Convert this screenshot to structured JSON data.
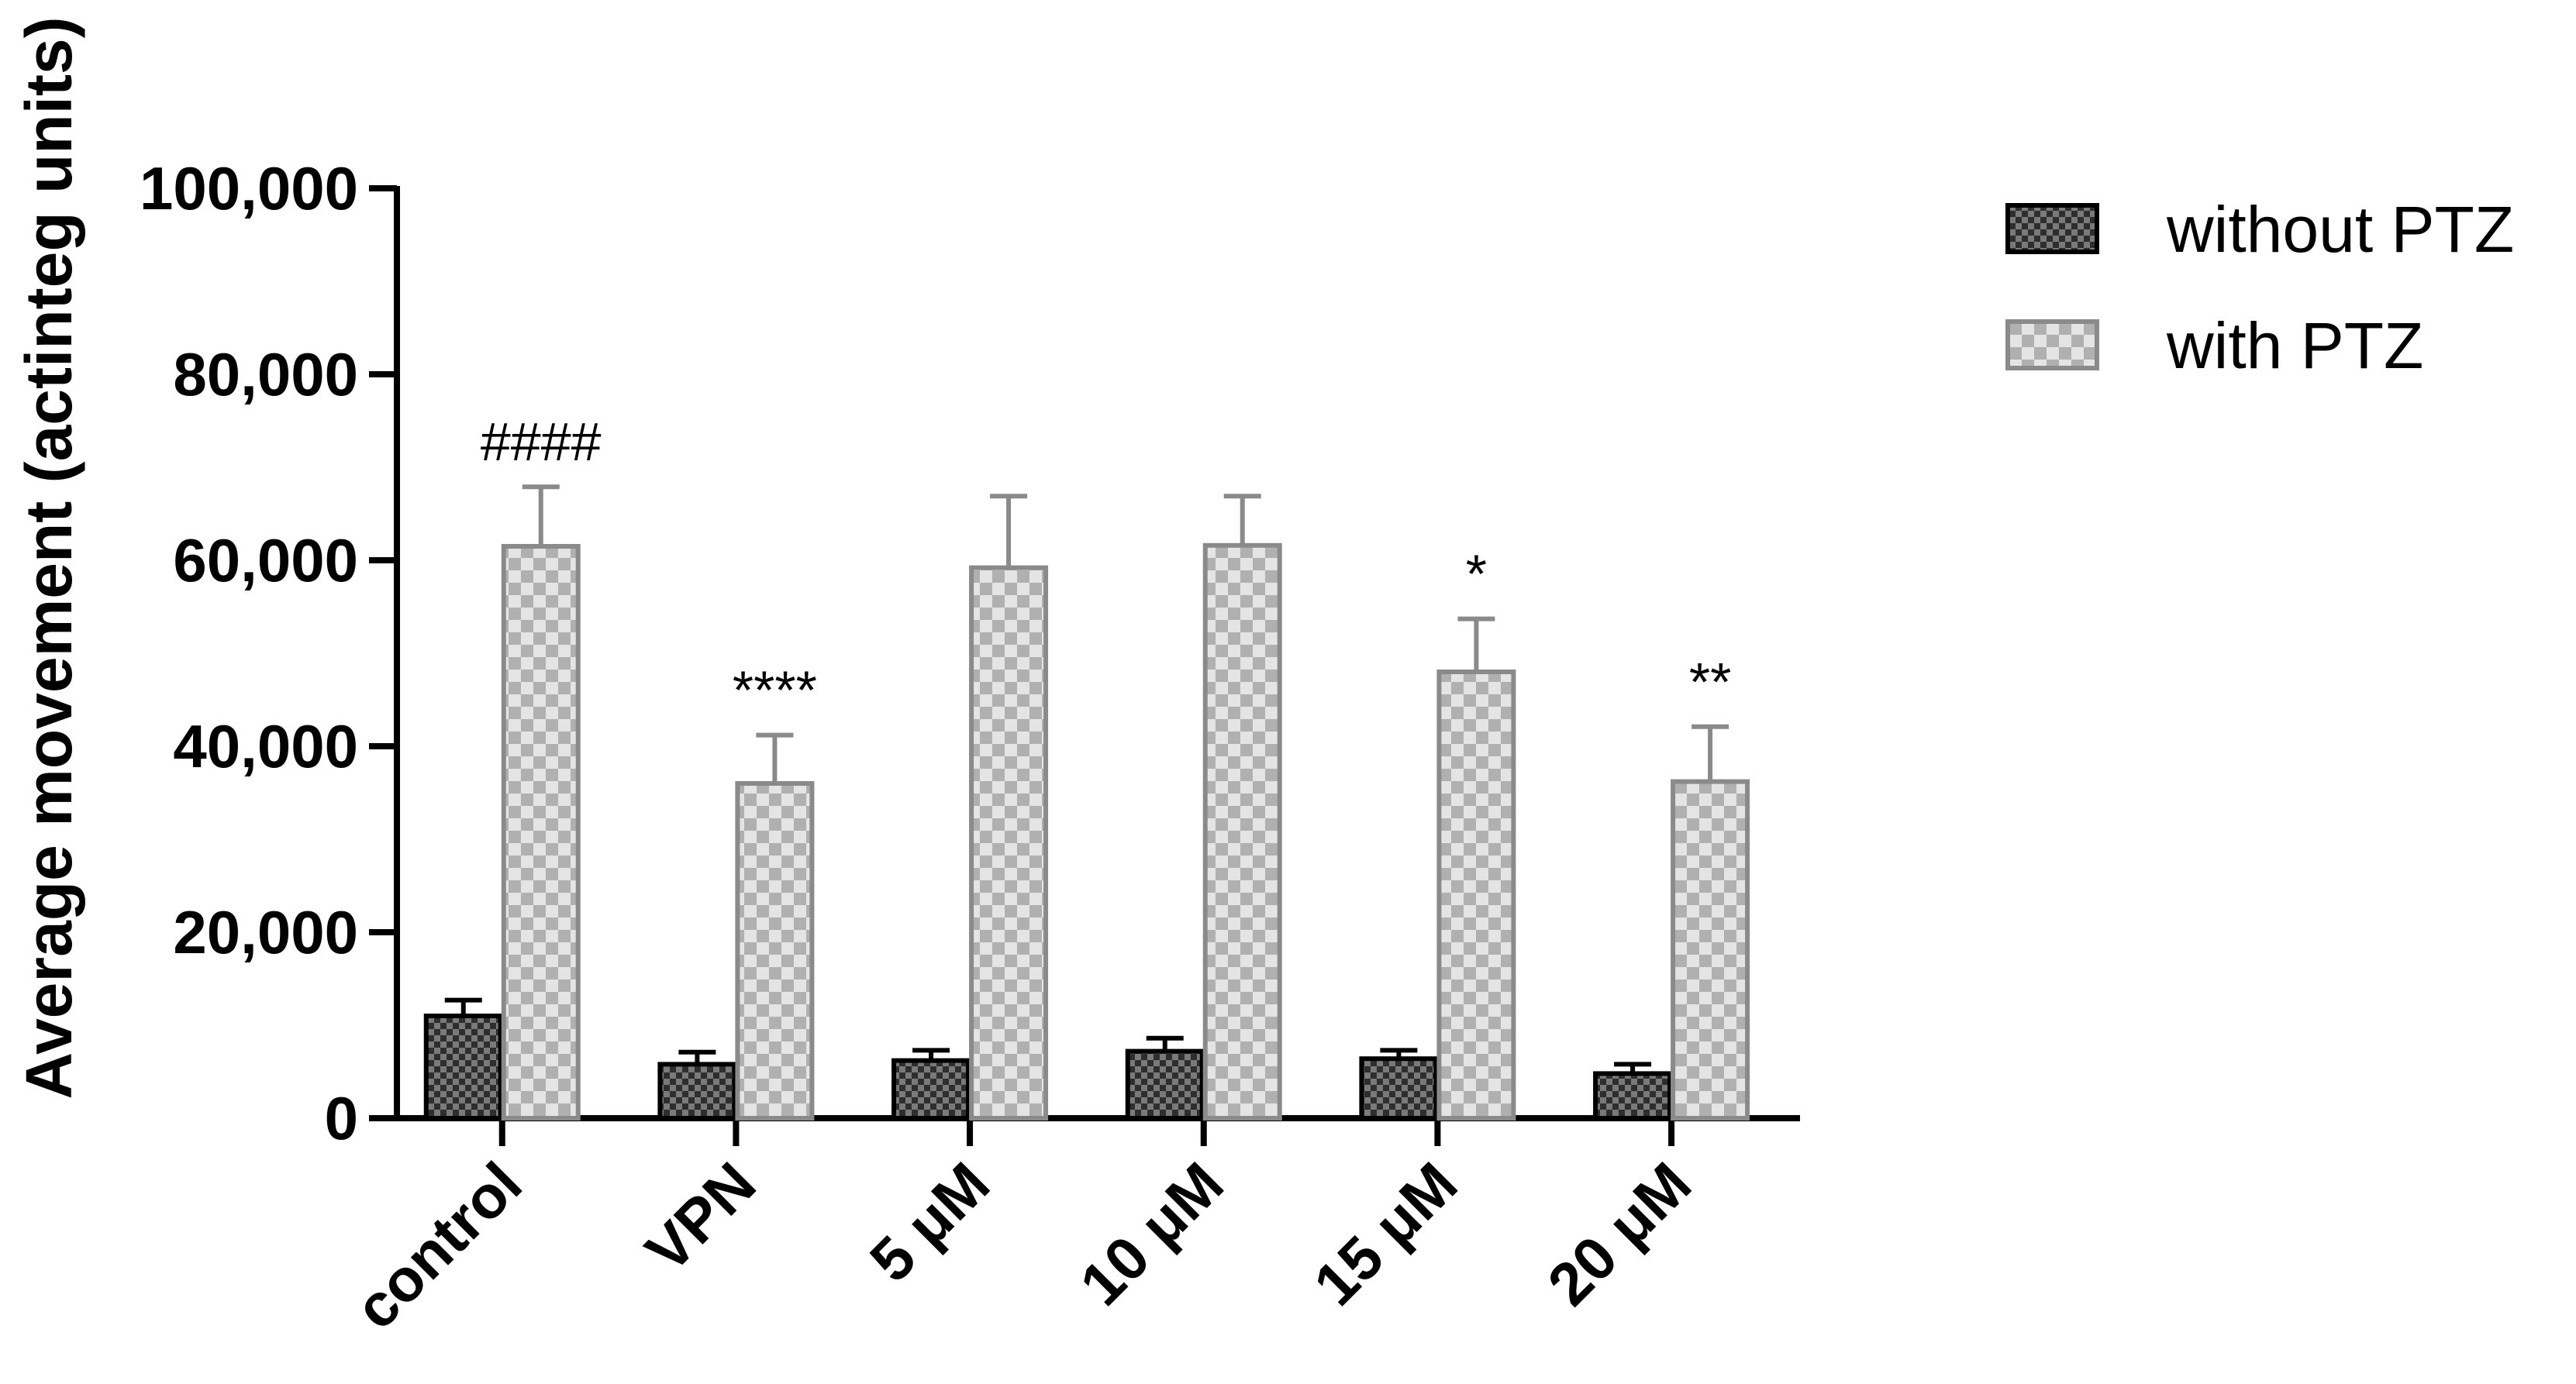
{
  "chart_data": {
    "type": "bar",
    "title": "",
    "xlabel": "",
    "ylabel": "Average movement (actinteg units)",
    "categories": [
      "control",
      "VPN",
      "5 μM",
      "10 μM",
      "15 μM",
      "20 μM"
    ],
    "ylim": [
      0,
      100000
    ],
    "yticks": [
      0,
      20000,
      40000,
      60000,
      80000,
      100000
    ],
    "ytick_labels": [
      "0",
      "20,000",
      "40,000",
      "60,000",
      "80,000",
      "100,000"
    ],
    "grid": false,
    "legend_position": "top-right",
    "series": [
      {
        "name": "without PTZ",
        "values": [
          11000,
          5800,
          6200,
          7200,
          6400,
          4800
        ],
        "errors": [
          1700,
          1300,
          1100,
          1400,
          900,
          1000
        ],
        "pattern": "dark-checker",
        "fill": "#7a7a7a",
        "fill_alt": "#2e2e2e",
        "stroke": "#000000"
      },
      {
        "name": "with PTZ",
        "values": [
          61500,
          36000,
          59200,
          61600,
          48000,
          36200
        ],
        "errors": [
          6400,
          5200,
          7700,
          5300,
          5700,
          5900
        ],
        "pattern": "light-checker",
        "fill": "#e4e4e4",
        "fill_alt": "#b0b0b0",
        "stroke": "#8a8a8a"
      }
    ],
    "annotations": [
      "####",
      "****",
      "",
      "",
      "*",
      "**"
    ]
  }
}
